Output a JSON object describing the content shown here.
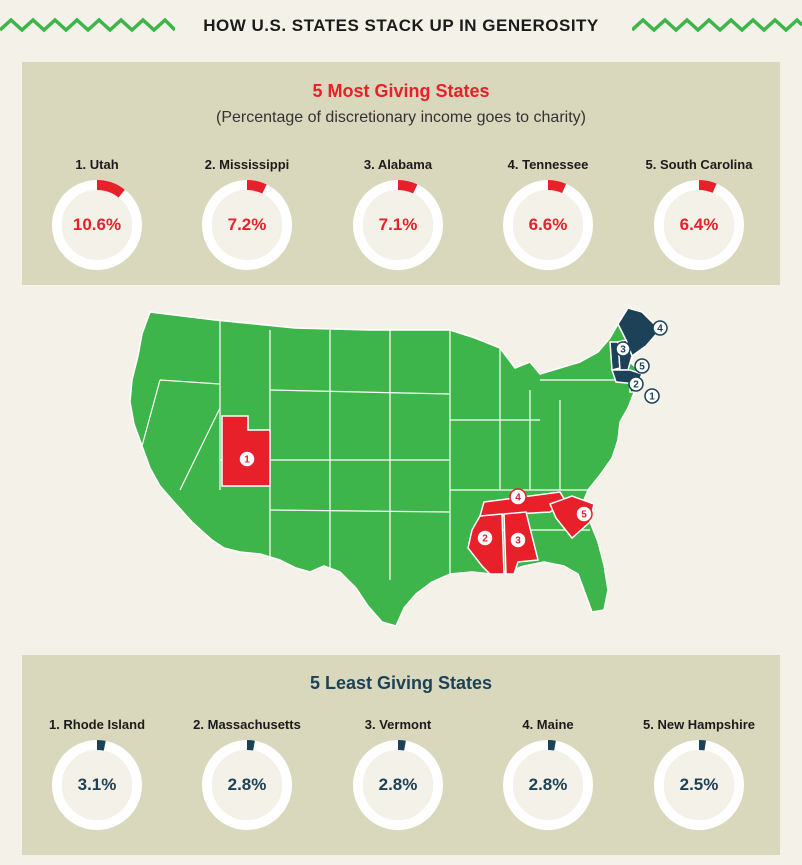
{
  "header": {
    "title": "HOW U.S. STATES STACK UP IN GENEROSITY"
  },
  "most_giving": {
    "title": "5 Most Giving States",
    "subtitle": "(Percentage of discretionary income goes to charity)",
    "states": [
      {
        "label": "1. Utah",
        "value": "10.6%",
        "pct": 10.6
      },
      {
        "label": "2. Mississippi",
        "value": "7.2%",
        "pct": 7.2
      },
      {
        "label": "3. Alabama",
        "value": "7.1%",
        "pct": 7.1
      },
      {
        "label": "4. Tennessee",
        "value": "6.6%",
        "pct": 6.6
      },
      {
        "label": "5. South Carolina",
        "value": "6.4%",
        "pct": 6.4
      }
    ]
  },
  "least_giving": {
    "title": "5 Least Giving States",
    "states": [
      {
        "label": "1. Rhode Island",
        "value": "3.1%",
        "pct": 3.1
      },
      {
        "label": "2. Massachusetts",
        "value": "2.8%",
        "pct": 2.8
      },
      {
        "label": "3. Vermont",
        "value": "2.8%",
        "pct": 2.8
      },
      {
        "label": "4. Maine",
        "value": "2.8%",
        "pct": 2.8
      },
      {
        "label": "5. New Hampshire",
        "value": "2.5%",
        "pct": 2.5
      }
    ]
  },
  "map": {
    "most_markers": [
      "1",
      "2",
      "3",
      "4",
      "5"
    ],
    "least_markers": [
      "1",
      "2",
      "3",
      "4",
      "5"
    ]
  },
  "colors": {
    "accent_red": "#e8202a",
    "accent_navy": "#1d4157",
    "map_green": "#3db54a",
    "panel_bg": "#d9d7bc",
    "page_bg": "#f4f2e8"
  }
}
